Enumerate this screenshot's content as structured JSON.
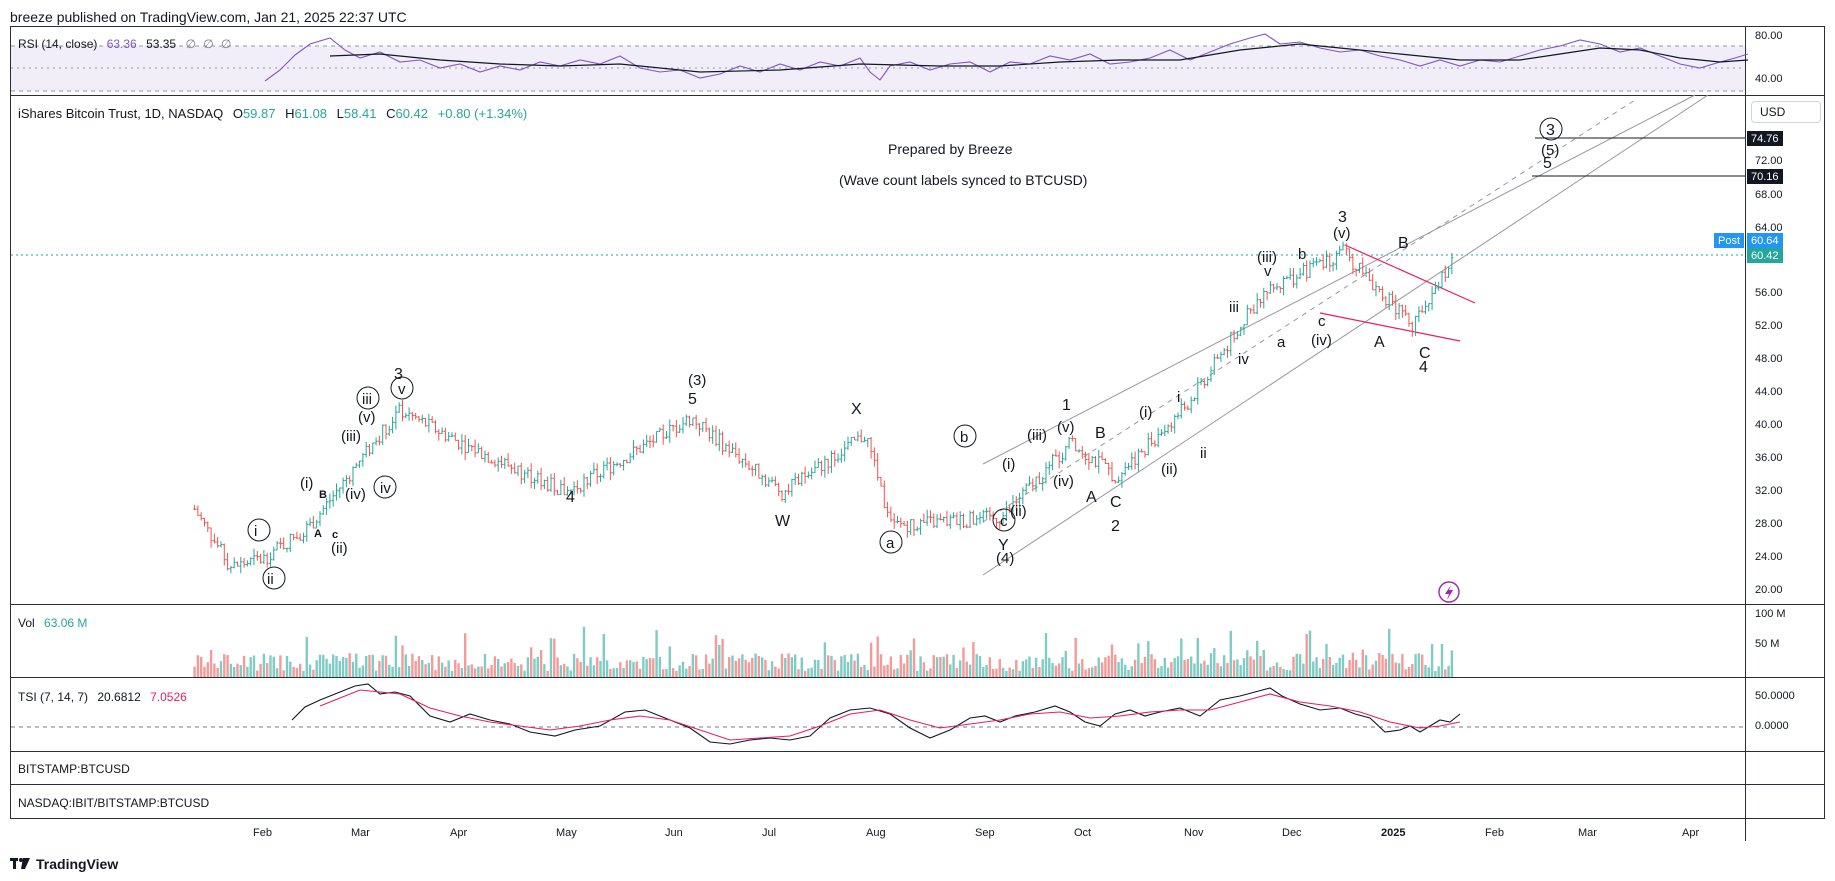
{
  "header": {
    "text": "breeze published on TradingView.com, Jan 21, 2025 22:37 UTC"
  },
  "rsi": {
    "name": "RSI (14, close)",
    "value1": "63.36",
    "value2": "53.35",
    "extra": "∅ ∅ ∅",
    "ticks": [
      "80.00",
      "40.00"
    ]
  },
  "legend": {
    "symbol": "iShares Bitcoin Trust, 1D, NASDAQ",
    "open_label": "O",
    "open": "59.87",
    "high_label": "H",
    "high": "61.08",
    "low_label": "L",
    "low": "58.41",
    "close_label": "C",
    "close": "60.42",
    "change": "+0.80 (+1.34%)"
  },
  "annotations": {
    "prepared": "Prepared by Breeze",
    "synced": "(Wave count labels synced to BTCUSD)"
  },
  "currency": "USD",
  "price_axis": [
    "72.00",
    "68.00",
    "64.00",
    "56.00",
    "52.00",
    "48.00",
    "44.00",
    "40.00",
    "36.00",
    "32.00",
    "28.00",
    "24.00",
    "20.00"
  ],
  "price_tags": {
    "t1": "74.76",
    "t2": "70.16",
    "post_label": "Post",
    "post": "60.64",
    "last": "60.42"
  },
  "volume": {
    "name": "Vol",
    "value": "63.06 M",
    "ticks": [
      "100 M",
      "50 M"
    ]
  },
  "tsi": {
    "name": "TSI (7, 14, 7)",
    "value1": "20.6812",
    "value2": "7.0526",
    "ticks": [
      "50.0000",
      "0.0000"
    ]
  },
  "panes": {
    "p1": "BITSTAMP:BTCUSD",
    "p2": "NASDAQ:IBIT/BITSTAMP:BTCUSD"
  },
  "time_axis": [
    "Feb",
    "Mar",
    "Apr",
    "May",
    "Jun",
    "Jul",
    "Aug",
    "Sep",
    "Oct",
    "Nov",
    "Dec",
    "2025",
    "Feb",
    "Mar",
    "Apr"
  ],
  "footer": {
    "brand": "TradingView"
  },
  "colors": {
    "up": "#26a69a",
    "down": "#ef5350",
    "rsi": "#7e57c2",
    "tsi_signal": "#e91e63",
    "channel": "#9598a1",
    "wedge": "#e91e63"
  },
  "chart_data": {
    "type": "candlestick",
    "title": "iShares Bitcoin Trust, 1D, NASDAQ",
    "ylim": [
      20,
      80
    ],
    "x_ticks": [
      "Feb",
      "Mar",
      "Apr",
      "May",
      "Jun",
      "Jul",
      "Aug",
      "Sep",
      "Oct",
      "Nov",
      "Dec",
      "2025",
      "Feb",
      "Mar",
      "Apr"
    ],
    "last": {
      "open": 59.87,
      "high": 61.08,
      "low": 58.41,
      "close": 60.42,
      "change": 0.8,
      "change_pct": 1.34
    },
    "approx_close_path": [
      {
        "x": "Jan 11",
        "y": 30
      },
      {
        "x": "Jan 22",
        "y": 23
      },
      {
        "x": "Feb 1",
        "y": 24
      },
      {
        "x": "Feb 15",
        "y": 28
      },
      {
        "x": "Mar 1",
        "y": 36
      },
      {
        "x": "Mar 13",
        "y": 42
      },
      {
        "x": "Apr 1",
        "y": 38
      },
      {
        "x": "May 1",
        "y": 32
      },
      {
        "x": "Jun 6",
        "y": 41
      },
      {
        "x": "Jul 4",
        "y": 32
      },
      {
        "x": "Jul 29",
        "y": 39
      },
      {
        "x": "Aug 5",
        "y": 28
      },
      {
        "x": "Sep 6",
        "y": 29
      },
      {
        "x": "Sep 27",
        "y": 38
      },
      {
        "x": "Oct 10",
        "y": 34
      },
      {
        "x": "Oct 29",
        "y": 42
      },
      {
        "x": "Nov 22",
        "y": 56
      },
      {
        "x": "Dec 17",
        "y": 61
      },
      {
        "x": "Jan 8",
        "y": 52
      },
      {
        "x": "Jan 21",
        "y": 60.42
      }
    ],
    "wave_labels": [
      "(i)",
      "(ii)",
      "(iii)",
      "(iv)",
      "(v)",
      "i",
      "ii",
      "iii",
      "iv",
      "v",
      "3",
      "4",
      "5",
      "(3)",
      "(4)",
      "(5)",
      "W",
      "X",
      "Y",
      "a",
      "b",
      "c",
      "A",
      "B",
      "C",
      "1",
      "2"
    ],
    "wave_label_groups": {
      "g1": [
        "i",
        "ii",
        "(i)",
        "B",
        "A",
        "c",
        "(ii)",
        "(iii)",
        "(iv)",
        "(v)",
        "iii",
        "iv",
        "v",
        "3"
      ],
      "g2": [
        "4",
        "(3)",
        "5",
        "W",
        "X",
        "a",
        "b",
        "c",
        "Y",
        "(4)"
      ],
      "g3": [
        "(i)",
        "(ii)",
        "(iii)",
        "(iv)",
        "(v)",
        "1",
        "A",
        "B",
        "C",
        "2",
        "(i)",
        "(ii)",
        "i",
        "ii"
      ],
      "g4": [
        "iii",
        "iv",
        "(iii)",
        "v",
        "a",
        "b",
        "c",
        "(iv)",
        "3",
        "(v)",
        "A",
        "B",
        "C",
        "4",
        "3",
        "(5)",
        "5"
      ]
    }
  }
}
